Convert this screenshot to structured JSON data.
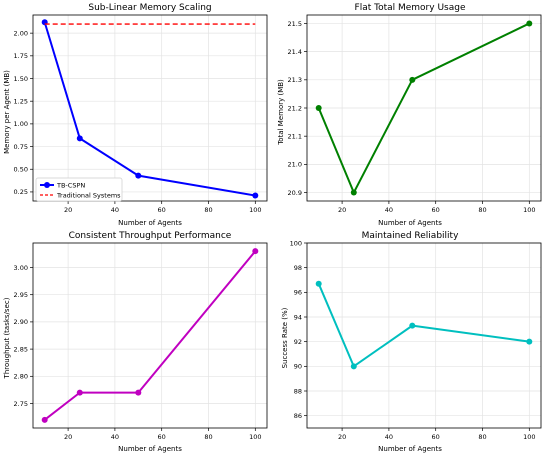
{
  "chart_data": [
    {
      "type": "line",
      "title": "Sub-Linear Memory Scaling",
      "xlabel": "Number of Agents",
      "ylabel": "Memory per Agent (MB)",
      "xlim": [
        5,
        105
      ],
      "ylim": [
        0.15,
        2.2
      ],
      "xticks": [
        20,
        40,
        60,
        80,
        100
      ],
      "yticks": [
        0.25,
        0.5,
        0.75,
        1.0,
        1.25,
        1.5,
        1.75,
        2.0
      ],
      "ytick_labels": [
        "0.25",
        "0.50",
        "0.75",
        "1.00",
        "1.25",
        "1.50",
        "1.75",
        "2.00"
      ],
      "grid": true,
      "legend": "lower-left",
      "series": [
        {
          "name": "TB-CSPN",
          "x": [
            10,
            25,
            50,
            100
          ],
          "y": [
            2.12,
            0.84,
            0.43,
            0.21
          ],
          "color": "#0000ff",
          "style": "solid",
          "markers": true
        },
        {
          "name": "Traditional Systems",
          "x": [
            10,
            100
          ],
          "y": [
            2.1,
            2.1
          ],
          "color": "#ff0000",
          "style": "dashed",
          "markers": false
        }
      ]
    },
    {
      "type": "line",
      "title": "Flat Total Memory Usage",
      "xlabel": "Number of Agents",
      "ylabel": "Total Memory (MB)",
      "xlim": [
        5,
        105
      ],
      "ylim": [
        20.87,
        21.53
      ],
      "xticks": [
        20,
        40,
        60,
        80,
        100
      ],
      "yticks": [
        20.9,
        21.0,
        21.1,
        21.2,
        21.3,
        21.4,
        21.5
      ],
      "ytick_labels": [
        "20.9",
        "21.0",
        "21.1",
        "21.2",
        "21.3",
        "21.4",
        "21.5"
      ],
      "grid": true,
      "series": [
        {
          "x": [
            10,
            25,
            50,
            100
          ],
          "y": [
            21.2,
            20.9,
            21.3,
            21.5
          ],
          "color": "#008000",
          "style": "solid",
          "markers": true
        }
      ]
    },
    {
      "type": "line",
      "title": "Consistent Throughput Performance",
      "xlabel": "Number of Agents",
      "ylabel": "Throughput (tasks/sec)",
      "xlim": [
        5,
        105
      ],
      "ylim": [
        2.705,
        3.045
      ],
      "xticks": [
        20,
        40,
        60,
        80,
        100
      ],
      "yticks": [
        2.75,
        2.8,
        2.85,
        2.9,
        2.95,
        3.0
      ],
      "ytick_labels": [
        "2.75",
        "2.80",
        "2.85",
        "2.90",
        "2.95",
        "3.00"
      ],
      "grid": true,
      "series": [
        {
          "x": [
            10,
            25,
            50,
            100
          ],
          "y": [
            2.72,
            2.77,
            2.77,
            3.03
          ],
          "color": "#c000c0",
          "style": "solid",
          "markers": true
        }
      ]
    },
    {
      "type": "line",
      "title": "Maintained Reliability",
      "xlabel": "Number of Agents",
      "ylabel": "Success Rate (%)",
      "xlim": [
        5,
        105
      ],
      "ylim": [
        85.0,
        100.0
      ],
      "xticks": [
        20,
        40,
        60,
        80,
        100
      ],
      "yticks": [
        86,
        88,
        90,
        92,
        94,
        96,
        98,
        100
      ],
      "ytick_labels": [
        "86",
        "88",
        "90",
        "92",
        "94",
        "96",
        "98",
        "100"
      ],
      "grid": true,
      "series": [
        {
          "x": [
            10,
            25,
            50,
            100
          ],
          "y": [
            96.7,
            90.0,
            93.3,
            92.0
          ],
          "color": "#00bfbf",
          "style": "solid",
          "markers": true
        }
      ]
    }
  ]
}
